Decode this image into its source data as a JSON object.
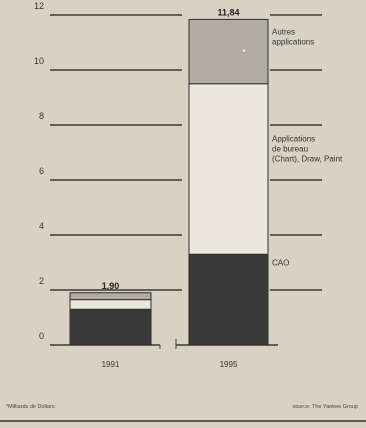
{
  "chart_data": {
    "type": "bar",
    "stacked": true,
    "categories": [
      "1991",
      "1995"
    ],
    "ylim": [
      0,
      12
    ],
    "yticks": [
      0,
      2,
      4,
      6,
      8,
      10,
      12
    ],
    "totals": [
      "1,90",
      "11,84"
    ],
    "series": [
      {
        "name": "CAO",
        "values": [
          1.3,
          3.3
        ]
      },
      {
        "name": "Applications de bureau (Chart), Draw, Paint",
        "values": [
          0.35,
          6.2
        ]
      },
      {
        "name": "Autres applications",
        "values": [
          0.25,
          2.34
        ]
      }
    ],
    "series_colors": [
      "#3a3a3a",
      "#ece7dc",
      "#b0aba3"
    ],
    "grid": true
  },
  "footnotes": {
    "left": "*Milliards de Dollars",
    "right": "source: The Yankee Group"
  }
}
